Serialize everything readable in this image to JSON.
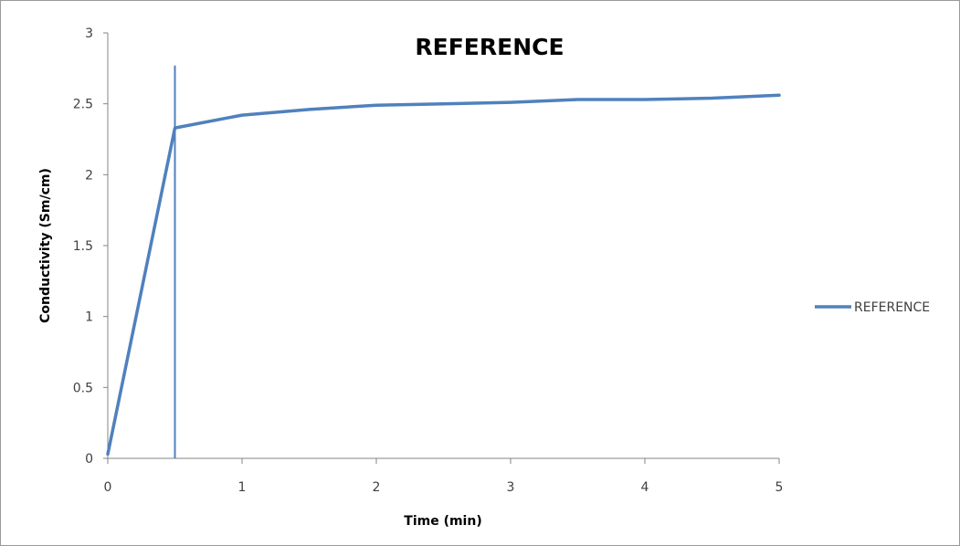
{
  "chart_data": {
    "type": "line",
    "title": "REFERENCE",
    "xlabel": "Time (min)",
    "ylabel": "Conductivity (Sm/cm)",
    "xlim": [
      0,
      5
    ],
    "ylim": [
      0,
      3
    ],
    "x_ticks": [
      "0",
      "1",
      "2",
      "3",
      "4",
      "5"
    ],
    "y_ticks": [
      "0",
      "0.5",
      "1",
      "1.5",
      "2",
      "2.5",
      "3"
    ],
    "series": [
      {
        "name": "REFERENCE",
        "color": "#4f81bd",
        "x": [
          0,
          0.5,
          1,
          1.5,
          2,
          2.5,
          3,
          3.5,
          4,
          4.5,
          5
        ],
        "y": [
          0.03,
          2.33,
          2.42,
          2.46,
          2.49,
          2.5,
          2.51,
          2.53,
          2.53,
          2.54,
          2.56
        ]
      }
    ],
    "reference_line": {
      "x": 0.5,
      "y_top": 2.77,
      "color": "#4f81bd"
    },
    "grid": false,
    "legend": "right"
  }
}
